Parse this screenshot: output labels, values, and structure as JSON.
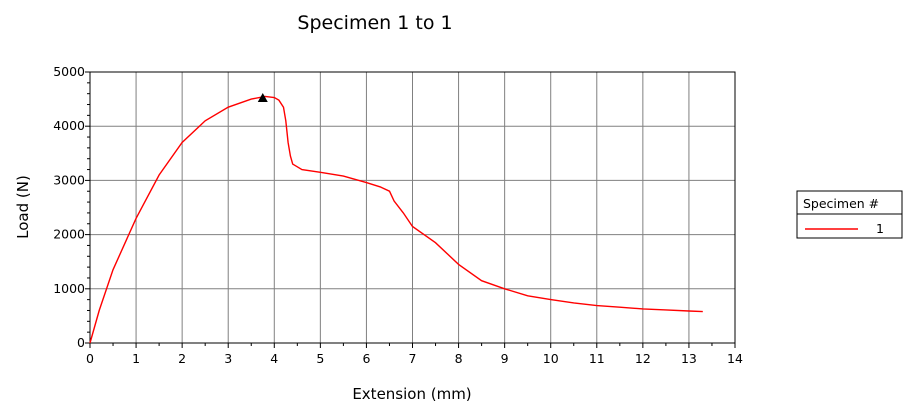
{
  "chart_data": {
    "type": "line",
    "title": "Specimen 1 to 1",
    "xlabel": "Extension (mm)",
    "ylabel": "Load (N)",
    "xlim": [
      0,
      14
    ],
    "ylim": [
      0,
      5000
    ],
    "xticks": [
      0,
      1,
      2,
      3,
      4,
      5,
      6,
      7,
      8,
      9,
      10,
      11,
      12,
      13,
      14
    ],
    "yticks": [
      0,
      1000,
      2000,
      3000,
      4000,
      5000
    ],
    "grid": true,
    "legend": {
      "title": "Specimen #",
      "placement": "right",
      "entries": [
        "1"
      ]
    },
    "series": [
      {
        "name": "1",
        "color": "#ff0000",
        "x": [
          0,
          0.2,
          0.5,
          1.0,
          1.5,
          2.0,
          2.5,
          3.0,
          3.5,
          3.8,
          4.0,
          4.1,
          4.2,
          4.25,
          4.3,
          4.35,
          4.4,
          4.5,
          4.6,
          5.0,
          5.5,
          6.0,
          6.3,
          6.5,
          6.6,
          6.8,
          7.0,
          7.5,
          8.0,
          8.5,
          9.0,
          9.5,
          10.0,
          10.5,
          11.0,
          11.5,
          12.0,
          12.5,
          13.0,
          13.3
        ],
        "y": [
          0,
          600,
          1350,
          2300,
          3100,
          3700,
          4100,
          4350,
          4500,
          4550,
          4530,
          4480,
          4350,
          4100,
          3700,
          3450,
          3300,
          3250,
          3200,
          3150,
          3080,
          2960,
          2880,
          2800,
          2620,
          2400,
          2150,
          1850,
          1450,
          1150,
          1000,
          870,
          800,
          740,
          690,
          660,
          630,
          610,
          590,
          580
        ]
      }
    ],
    "annotations": [
      {
        "type": "peak-marker",
        "shape": "triangle",
        "x": 3.75,
        "y": 4520
      }
    ]
  }
}
